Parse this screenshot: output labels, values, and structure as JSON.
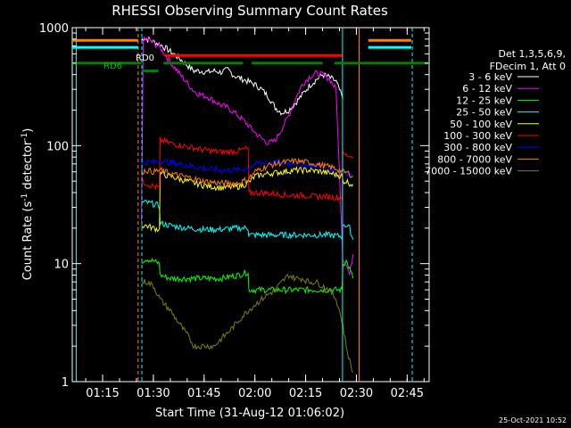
{
  "chart_data": {
    "type": "line",
    "title": "RHESSI Observing Summary Count Rates",
    "xlabel": "Start Time (31-Aug-12 01:06:02)",
    "ylabel_main": "Count Rate (s",
    "ylabel_sup": "-1",
    "ylabel_mid": " detector",
    "ylabel_sup2": "-1",
    "ylabel_end": ")",
    "ylog": true,
    "ylim": [
      1,
      1000
    ],
    "xlim_min": [
      66.03,
      171.5
    ],
    "x_ticks": [
      {
        "t": 75,
        "label": "01:15"
      },
      {
        "t": 90,
        "label": "01:30"
      },
      {
        "t": 105,
        "label": "01:45"
      },
      {
        "t": 120,
        "label": "02:00"
      },
      {
        "t": 135,
        "label": "02:15"
      },
      {
        "t": 150,
        "label": "02:30"
      },
      {
        "t": 165,
        "label": "02:45"
      }
    ],
    "y_ticks": [
      {
        "v": 1,
        "label": "1"
      },
      {
        "v": 10,
        "label": "10"
      },
      {
        "v": 100,
        "label": "100"
      },
      {
        "v": 1000,
        "label": "1000"
      }
    ],
    "legend_header": [
      "Det 1,3,5,6,9,",
      "FDecim 1, Att 0"
    ],
    "timestamp": "25-Oct-2021 10:52",
    "annotations": [
      "RD6",
      "RD0"
    ],
    "series": [
      {
        "name": "3 - 6 keV",
        "color": "#ffffff",
        "x": [
          86.5,
          87,
          88,
          89,
          90,
          92,
          94,
          96,
          98,
          100,
          102,
          104,
          106,
          108,
          110,
          112,
          114,
          116,
          118,
          120,
          122,
          124,
          126,
          128,
          130,
          132,
          134,
          136,
          138,
          140,
          142,
          144,
          146
        ],
        "y": [
          780,
          820,
          800,
          790,
          760,
          720,
          660,
          600,
          540,
          480,
          430,
          430,
          420,
          430,
          420,
          440,
          390,
          370,
          350,
          330,
          300,
          260,
          210,
          190,
          200,
          230,
          270,
          320,
          360,
          400,
          380,
          350,
          250
        ]
      },
      {
        "name": "6 - 12 keV",
        "color": "#ff00ff",
        "x": [
          86.5,
          87,
          88,
          89,
          90,
          92,
          94,
          96,
          98,
          100,
          102,
          104,
          106,
          108,
          110,
          112,
          114,
          116,
          118,
          120,
          122,
          124,
          126,
          128,
          130,
          132,
          134,
          136,
          138,
          140,
          142,
          144,
          146,
          147,
          148,
          149
        ],
        "y": [
          22,
          780,
          800,
          780,
          740,
          680,
          560,
          470,
          400,
          340,
          290,
          270,
          260,
          240,
          220,
          210,
          190,
          170,
          150,
          130,
          115,
          105,
          110,
          140,
          180,
          250,
          330,
          380,
          410,
          400,
          370,
          300,
          11,
          10,
          8,
          12
        ]
      },
      {
        "name": "12 - 25 keV",
        "color": "#00ff00",
        "x": [
          86.5,
          88,
          90,
          91.8,
          92,
          95,
          100,
          105,
          110,
          115,
          118,
          118.2,
          122,
          126,
          130,
          134,
          138,
          142,
          145.8,
          146,
          147,
          148,
          149
        ],
        "y": [
          10.5,
          11,
          10.5,
          10,
          8,
          7.5,
          7.5,
          7.5,
          7.5,
          8,
          8.5,
          6,
          6,
          6,
          6,
          6,
          6,
          6,
          6,
          10,
          10.5,
          9,
          7.5
        ]
      },
      {
        "name": "25 - 50 keV",
        "color": "#00ffff",
        "x": [
          86.5,
          88,
          90,
          91.8,
          92,
          95,
          100,
          105,
          110,
          115,
          118,
          118.2,
          122,
          126,
          130,
          134,
          138,
          142,
          145.8,
          146,
          147,
          148,
          149
        ],
        "y": [
          33,
          33,
          32,
          31,
          22,
          21,
          20,
          19.5,
          19.5,
          20,
          20,
          17.5,
          17.5,
          17.5,
          17.5,
          17.5,
          17.5,
          17.5,
          17,
          22,
          21,
          20,
          16
        ]
      },
      {
        "name": "50 - 100 keV",
        "color": "#ffff00",
        "x": [
          86.5,
          88,
          90,
          91.8,
          92,
          95,
          100,
          105,
          110,
          115,
          118,
          120,
          124,
          128,
          132,
          136,
          140,
          144,
          145.8,
          146,
          147,
          148,
          149
        ],
        "y": [
          21,
          21,
          20,
          19.5,
          58,
          55,
          50,
          46,
          44,
          45,
          48,
          55,
          58,
          60,
          62,
          62,
          60,
          57,
          55,
          50,
          50,
          48,
          47
        ]
      },
      {
        "name": "100 - 300 keV",
        "color": "#ff0000",
        "x": [
          86.5,
          88,
          90,
          91.8,
          92,
          95,
          100,
          105,
          110,
          115,
          118,
          118.2,
          122,
          126,
          130,
          134,
          138,
          142,
          145.8,
          146,
          147,
          148,
          149
        ],
        "y": [
          50,
          48,
          45,
          44,
          112,
          105,
          98,
          92,
          88,
          90,
          95,
          40,
          40,
          39,
          38,
          38,
          37,
          37,
          36,
          85,
          83,
          82,
          80
        ]
      },
      {
        "name": "300 - 800 keV",
        "color": "#0000ff",
        "x": [
          86.5,
          88,
          90,
          92,
          95,
          100,
          105,
          110,
          115,
          118,
          120,
          124,
          128,
          132,
          136,
          140,
          144,
          146,
          148,
          149
        ],
        "y": [
          72,
          73,
          72,
          75,
          72,
          68,
          64,
          62,
          62,
          65,
          70,
          73,
          72,
          70,
          68,
          66,
          62,
          62,
          57,
          56
        ]
      },
      {
        "name": "800 - 7000 keV",
        "color": "#ff8000",
        "x": [
          86.5,
          88,
          90,
          92,
          95,
          100,
          105,
          110,
          115,
          118,
          120,
          124,
          128,
          132,
          136,
          140,
          144,
          146,
          148,
          149
        ],
        "y": [
          60,
          62,
          60,
          62,
          58,
          54,
          50,
          48,
          48,
          52,
          60,
          68,
          72,
          74,
          72,
          68,
          64,
          60,
          58,
          55
        ]
      },
      {
        "name": "7000 - 15000 keV",
        "color": "#808000",
        "x": [
          86.5,
          88,
          90,
          92,
          95,
          98,
          100,
          102,
          104,
          106,
          108,
          110,
          112,
          114,
          116,
          118,
          120,
          122,
          124,
          126,
          128,
          130,
          132,
          134,
          136,
          138,
          140,
          142,
          144,
          145,
          146,
          147,
          148,
          149
        ],
        "y": [
          7,
          7,
          6.5,
          5,
          4,
          3,
          2.5,
          2,
          2,
          2,
          2,
          2.3,
          2.6,
          3,
          3.5,
          4,
          4.5,
          5,
          5.5,
          6,
          7,
          8,
          7.5,
          7.5,
          7,
          7,
          6.5,
          6,
          5,
          4,
          3,
          2,
          1.5,
          1.2
        ]
      }
    ],
    "vertical_lines": [
      {
        "t": 85.5,
        "color": "#ff8000",
        "dash": true
      },
      {
        "t": 86.6,
        "color": "#00ffff",
        "dash": true
      },
      {
        "t": 67.2,
        "color": "#00ffff",
        "dash": false
      },
      {
        "t": 145.9,
        "color": "#00ffff",
        "dash": false
      },
      {
        "t": 150.8,
        "color": "#ff8000",
        "dash": false
      },
      {
        "t": 166.5,
        "color": "#00ffff",
        "dash": true
      }
    ],
    "flag_bars": [
      {
        "color": "#ff8000",
        "segments": [
          [
            66.03,
            85.5
          ],
          [
            153.5,
            166.2
          ]
        ]
      },
      {
        "color": "#00ffff",
        "segments": [
          [
            66.03,
            85.5
          ],
          [
            153.5,
            166.2
          ]
        ]
      },
      {
        "color": "#ff0000",
        "segments": [
          [
            93.5,
            145.8
          ]
        ]
      },
      {
        "color": "#008000",
        "segments": [
          [
            66.03,
            86.5
          ],
          [
            93,
            116.5
          ],
          [
            119,
            140
          ],
          [
            143.5,
            171.5
          ]
        ]
      }
    ]
  }
}
